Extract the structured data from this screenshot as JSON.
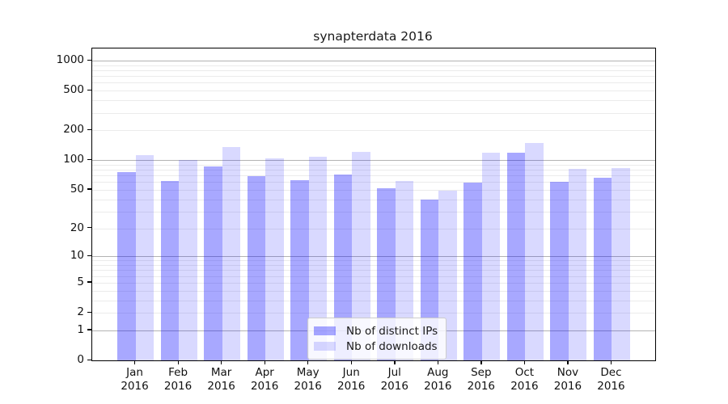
{
  "title": "synapterdata 2016",
  "chart_data": {
    "type": "bar",
    "categories": [
      "Jan 2016",
      "Feb 2016",
      "Mar 2016",
      "Apr 2016",
      "May 2016",
      "Jun 2016",
      "Jul 2016",
      "Aug 2016",
      "Sep 2016",
      "Oct 2016",
      "Nov 2016",
      "Dec 2016"
    ],
    "month_labels": [
      "Jan",
      "Feb",
      "Mar",
      "Apr",
      "May",
      "Jun",
      "Jul",
      "Aug",
      "Sep",
      "Oct",
      "Nov",
      "Dec"
    ],
    "year_label": "2016",
    "series": [
      {
        "name": "Nb of distinct IPs",
        "color": "rgba(0,0,255,0.34)",
        "values": [
          75,
          62,
          87,
          69,
          63,
          72,
          52,
          40,
          59,
          118,
          60,
          66
        ]
      },
      {
        "name": "Nb of downloads",
        "color": "rgba(0,0,255,0.15)",
        "values": [
          113,
          100,
          135,
          105,
          108,
          120,
          61,
          49,
          118,
          150,
          81,
          83
        ]
      }
    ],
    "title": "synapterdata 2016",
    "xlabel": "",
    "ylabel": "",
    "y_axis": {
      "scale": "log1p",
      "tick_values": [
        0,
        1,
        2,
        5,
        10,
        20,
        50,
        100,
        200,
        500,
        1000
      ],
      "tick_labels": [
        "0",
        "1",
        "2",
        "5",
        "10",
        "20",
        "50",
        "100",
        "200",
        "500",
        "1000"
      ],
      "max": 1320
    },
    "grid": "on",
    "legend_position": "lower center"
  },
  "colors": {
    "major_grid": "#b3b3b3",
    "minor_grid": "#ebebeb",
    "axis": "#000000",
    "bar_distinct_ips": "rgba(0,0,255,0.34)",
    "bar_downloads": "rgba(0,0,255,0.15)"
  }
}
